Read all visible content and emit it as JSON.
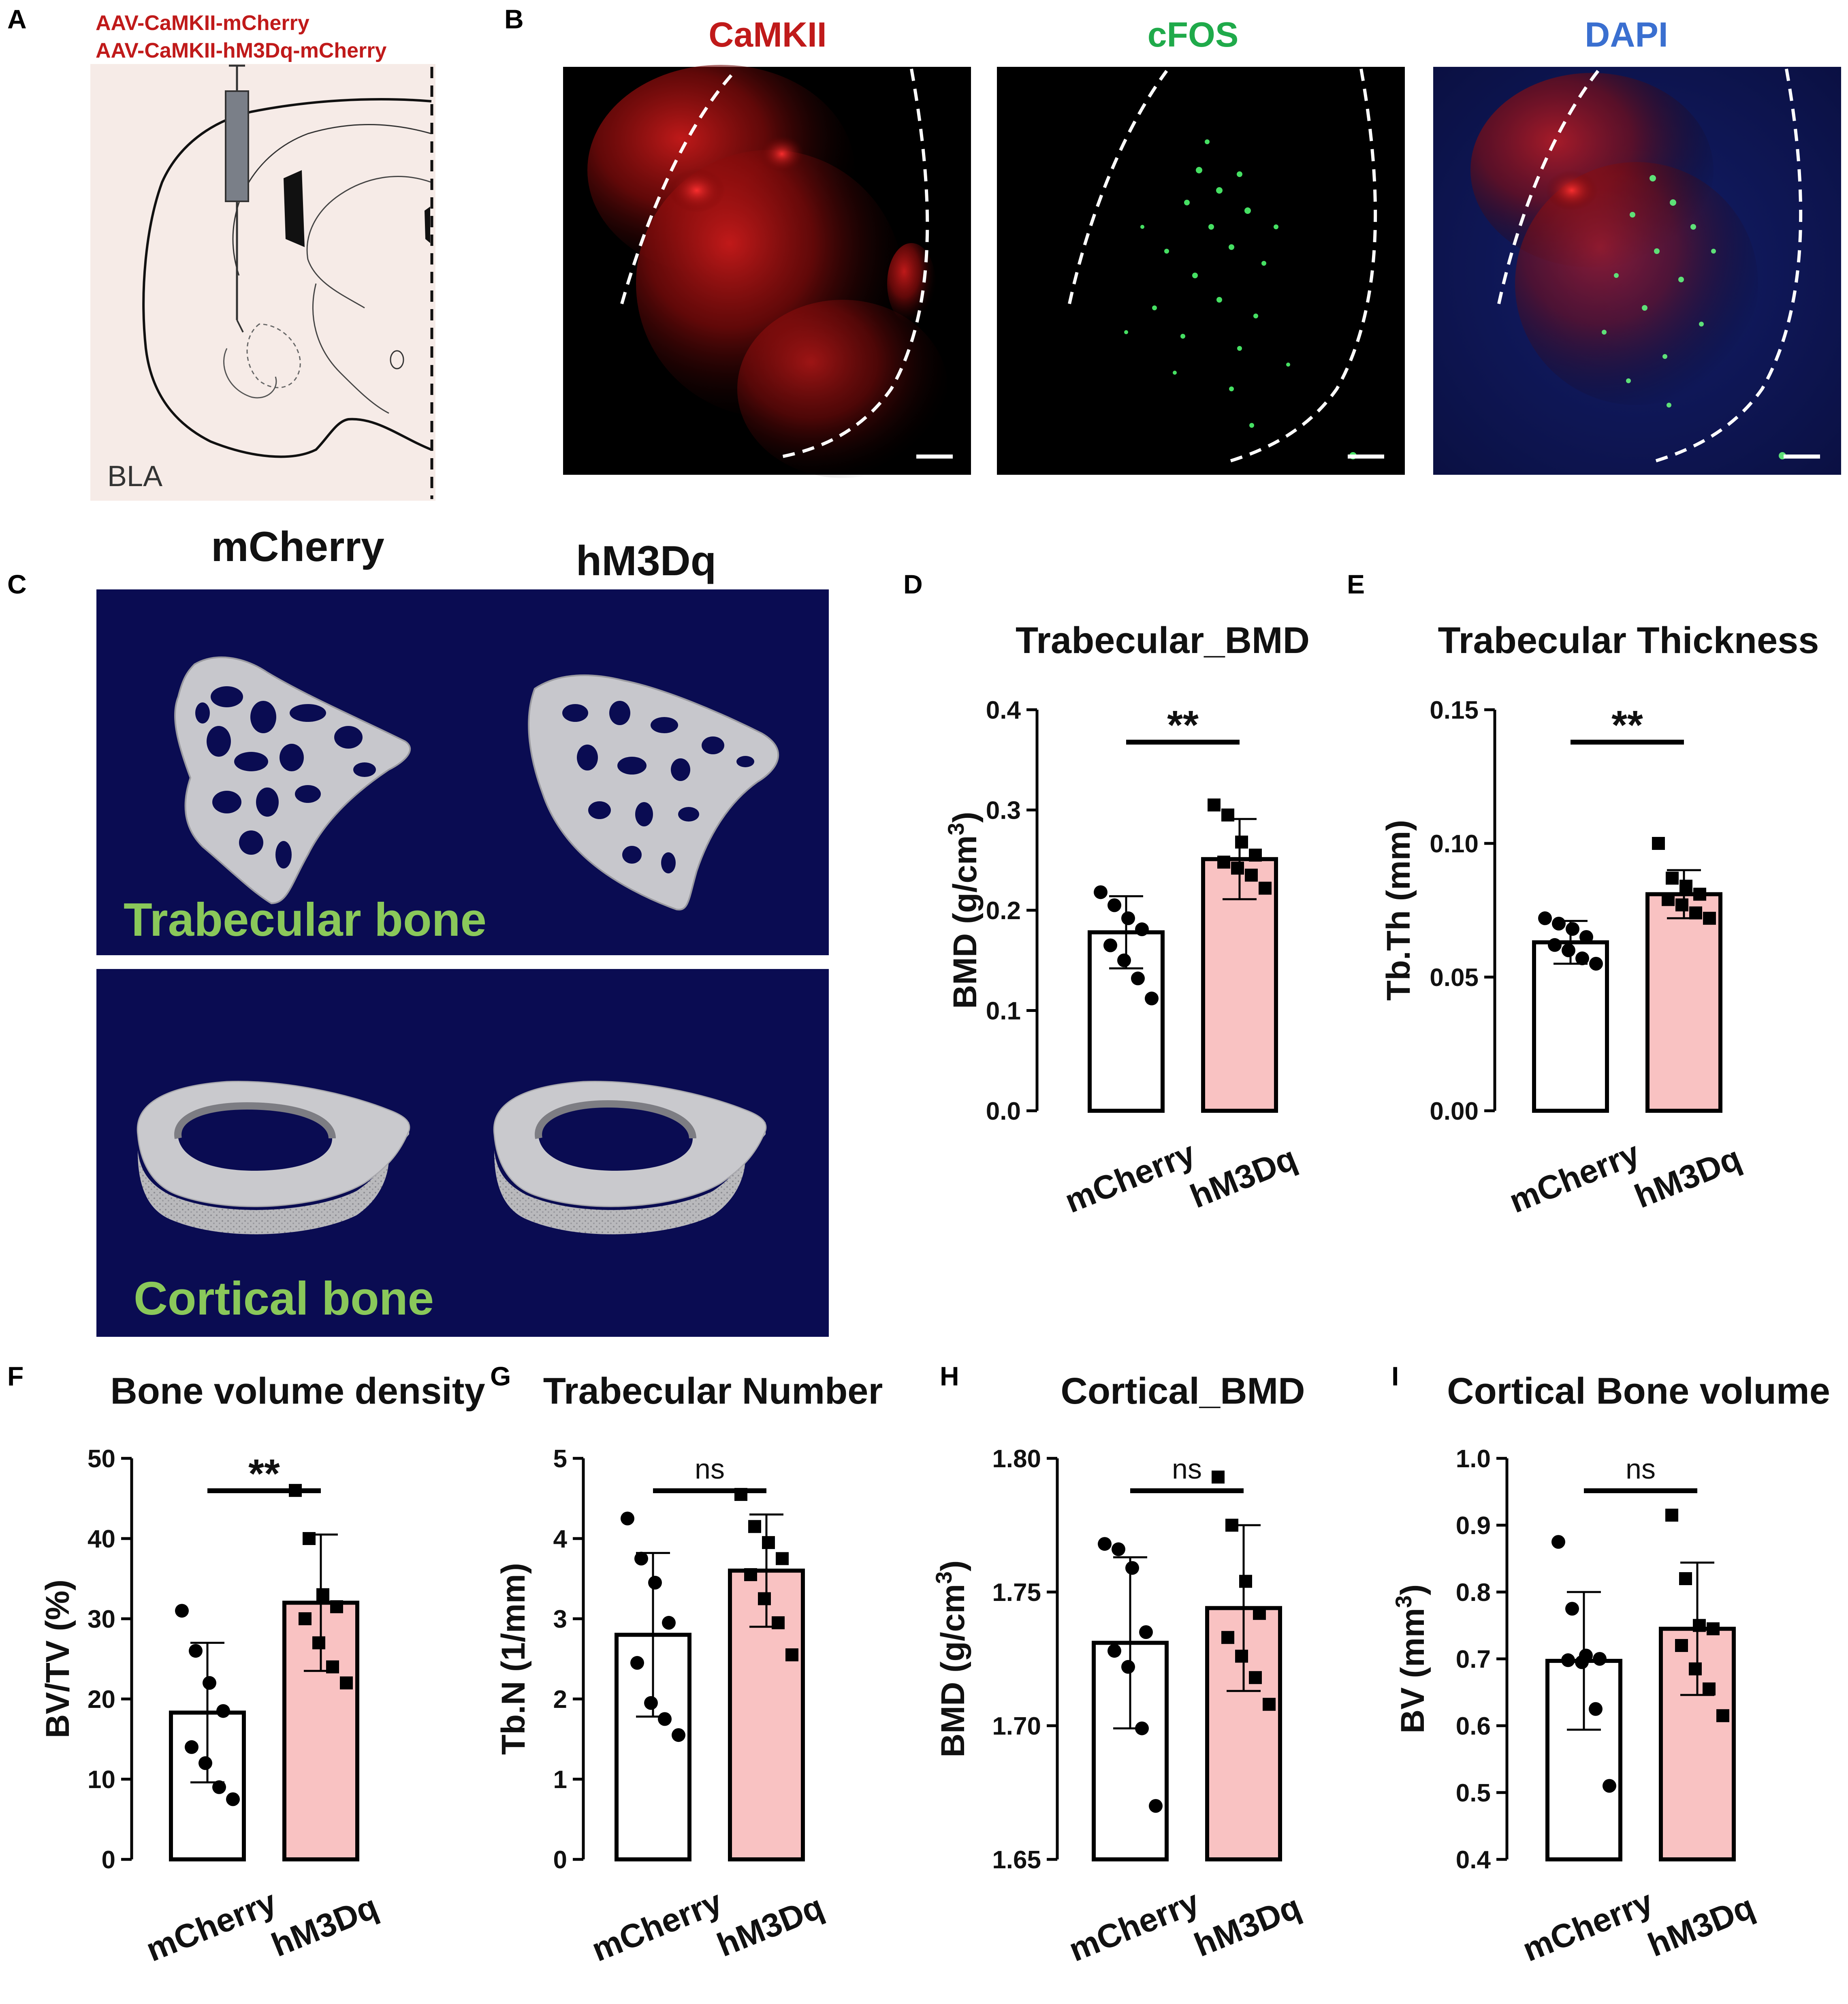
{
  "panelA": {
    "letter": "A",
    "line1": "AAV-CaMKII-mCherry",
    "line2": "AAV-CaMKII-hM3Dq-mCherry",
    "region": "BLA"
  },
  "panelB": {
    "letter": "B",
    "labels": [
      "CaMKII",
      "cFOS",
      "DAPI"
    ],
    "label_colors": [
      "#c01a1a",
      "#1faa4a",
      "#3a6fd0"
    ]
  },
  "panelC": {
    "letter": "C",
    "col1": "mCherry",
    "col2": "hM3Dq",
    "row1": "Trabecular bone",
    "row2": "Cortical bone"
  },
  "colors": {
    "hm3dq_fill": "#f9c2c2",
    "mcherry_fill": "#ffffff",
    "bone_bg": "#0a0c52",
    "bone_label": "#8ac85a"
  },
  "chart_data": [
    {
      "panel": "D",
      "type": "bar",
      "title": "Trabecular_BMD",
      "ylabel": "BMD (g/cm3)",
      "ylabel_base": "BMD (g/cm",
      "ylabel_sup": "3",
      "ylabel_end": ")",
      "ylim": [
        0,
        0.4
      ],
      "yticks": [
        "0.0",
        "0.1",
        "0.2",
        "0.3",
        "0.4"
      ],
      "categories": [
        "mCherry",
        "hM3Dq"
      ],
      "means": [
        0.178,
        0.251
      ],
      "sd": [
        0.036,
        0.04
      ],
      "points": [
        [
          0.218,
          0.205,
          0.192,
          0.181,
          0.165,
          0.15,
          0.132,
          0.112
        ],
        [
          0.305,
          0.295,
          0.268,
          0.255,
          0.248,
          0.242,
          0.235,
          0.222
        ]
      ],
      "sig": "**"
    },
    {
      "panel": "E",
      "type": "bar",
      "title": "Trabecular Thickness",
      "ylabel": "Tb.Th (mm)",
      "ylim": [
        0,
        0.15
      ],
      "yticks": [
        "0.00",
        "0.05",
        "0.10",
        "0.15"
      ],
      "categories": [
        "mCherry",
        "hM3Dq"
      ],
      "means": [
        0.063,
        0.081
      ],
      "sd": [
        0.008,
        0.009
      ],
      "points": [
        [
          0.072,
          0.07,
          0.068,
          0.065,
          0.062,
          0.06,
          0.057,
          0.055
        ],
        [
          0.1,
          0.087,
          0.084,
          0.081,
          0.079,
          0.077,
          0.074,
          0.072
        ]
      ],
      "sig": "**"
    },
    {
      "panel": "F",
      "type": "bar",
      "title": "Bone volume density",
      "ylabel": "BV/TV (%)",
      "ylim": [
        0,
        50
      ],
      "yticks": [
        "0",
        "10",
        "20",
        "30",
        "40",
        "50"
      ],
      "categories": [
        "mCherry",
        "hM3Dq"
      ],
      "means": [
        18.3,
        32.0
      ],
      "sd": [
        8.7,
        8.5
      ],
      "points": [
        [
          31.0,
          26.0,
          22.0,
          18.5,
          14.0,
          12.0,
          9.0,
          7.5
        ],
        [
          46.0,
          40.0,
          33.0,
          31.5,
          30.0,
          27.0,
          24.0,
          22.0
        ]
      ],
      "sig": "**"
    },
    {
      "panel": "G",
      "type": "bar",
      "title": "Trabecular Number",
      "ylabel": "Tb.N (1/mm)",
      "ylim": [
        0,
        5
      ],
      "yticks": [
        "0",
        "1",
        "2",
        "3",
        "4",
        "5"
      ],
      "categories": [
        "mCherry",
        "hM3Dq"
      ],
      "means": [
        2.8,
        3.6
      ],
      "sd": [
        1.02,
        0.7
      ],
      "points": [
        [
          4.25,
          3.75,
          3.45,
          2.95,
          2.45,
          1.95,
          1.75,
          1.55
        ],
        [
          4.55,
          4.15,
          3.95,
          3.75,
          3.55,
          3.25,
          2.95,
          2.55
        ]
      ],
      "sig": "ns"
    },
    {
      "panel": "H",
      "type": "bar",
      "title": "Cortical_BMD",
      "ylabel": "BMD (g/cm3)",
      "ylabel_base": "BMD (g/cm",
      "ylabel_sup": "3",
      "ylabel_end": ")",
      "ylim": [
        1.65,
        1.8
      ],
      "yticks": [
        "1.65",
        "1.70",
        "1.75",
        "1.80"
      ],
      "categories": [
        "mCherry",
        "hM3Dq"
      ],
      "means": [
        1.731,
        1.744
      ],
      "sd": [
        0.032,
        0.031
      ],
      "points": [
        [
          1.768,
          1.766,
          1.759,
          1.735,
          1.728,
          1.722,
          1.699,
          1.67
        ],
        [
          1.793,
          1.775,
          1.754,
          1.742,
          1.733,
          1.726,
          1.718,
          1.708
        ]
      ],
      "sig": "ns"
    },
    {
      "panel": "I",
      "type": "bar",
      "title": "Cortical Bone volume",
      "ylabel": "BV (mm3)",
      "ylabel_base": "BV (mm",
      "ylabel_sup": "3",
      "ylabel_end": ")",
      "ylim": [
        0.4,
        1.0
      ],
      "yticks": [
        "0.4",
        "0.5",
        "0.6",
        "0.7",
        "0.8",
        "0.9",
        "1.0"
      ],
      "categories": [
        "mCherry",
        "hM3Dq"
      ],
      "means": [
        0.697,
        0.745
      ],
      "sd": [
        0.103,
        0.099
      ],
      "points": [
        [
          0.875,
          0.775,
          0.705,
          0.7,
          0.698,
          0.695,
          0.625,
          0.51
        ],
        [
          0.915,
          0.82,
          0.75,
          0.745,
          0.72,
          0.685,
          0.655,
          0.615
        ]
      ],
      "sig": "ns"
    }
  ]
}
